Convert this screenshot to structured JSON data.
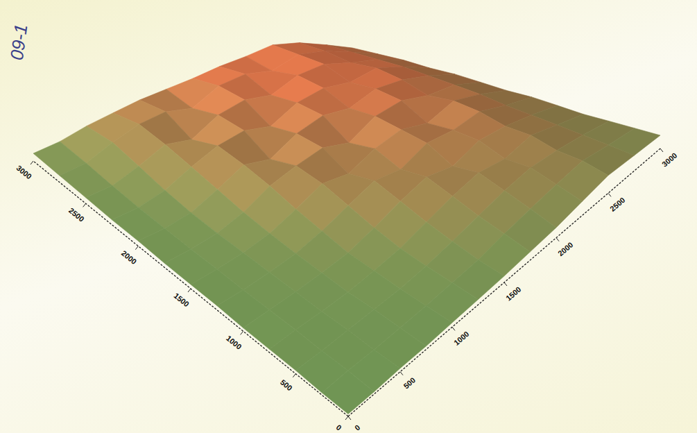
{
  "chart_data": {
    "type": "surface",
    "annotation": "09-1",
    "x": [
      0,
      250,
      500,
      750,
      1000,
      1250,
      1500,
      1750,
      2000,
      2250,
      2500,
      2750,
      3000
    ],
    "y": [
      0,
      250,
      500,
      750,
      1000,
      1250,
      1500,
      1750,
      2000,
      2250,
      2500,
      2750,
      3000
    ],
    "z": [
      [
        2,
        2,
        3,
        3,
        4,
        5,
        6,
        8,
        10,
        14,
        18,
        16,
        14
      ],
      [
        2,
        3,
        3,
        4,
        5,
        7,
        9,
        14,
        18,
        22,
        25,
        20,
        16
      ],
      [
        3,
        3,
        4,
        5,
        6,
        9,
        14,
        20,
        26,
        30,
        28,
        24,
        18
      ],
      [
        3,
        4,
        4,
        5,
        8,
        12,
        20,
        28,
        34,
        30,
        36,
        28,
        20
      ],
      [
        3,
        4,
        5,
        7,
        10,
        18,
        28,
        36,
        30,
        40,
        38,
        32,
        24
      ],
      [
        4,
        4,
        6,
        9,
        16,
        26,
        36,
        32,
        44,
        42,
        46,
        36,
        28
      ],
      [
        4,
        5,
        7,
        12,
        22,
        34,
        30,
        42,
        48,
        40,
        50,
        42,
        30
      ],
      [
        4,
        5,
        8,
        16,
        30,
        38,
        44,
        36,
        52,
        56,
        48,
        46,
        34
      ],
      [
        5,
        6,
        10,
        22,
        36,
        30,
        46,
        54,
        50,
        60,
        58,
        50,
        38
      ],
      [
        5,
        7,
        14,
        28,
        40,
        46,
        40,
        56,
        62,
        58,
        64,
        54,
        40
      ],
      [
        6,
        9,
        20,
        34,
        30,
        48,
        56,
        52,
        66,
        70,
        62,
        56,
        44
      ],
      [
        7,
        12,
        26,
        38,
        44,
        40,
        58,
        64,
        60,
        72,
        68,
        58,
        46
      ],
      [
        8,
        14,
        24,
        32,
        40,
        46,
        52,
        60,
        66,
        74,
        70,
        60,
        48
      ]
    ],
    "xlim": [
      0,
      3000
    ],
    "ylim": [
      0,
      3000
    ],
    "zlim": [
      0,
      100
    ],
    "xticks": [
      0,
      500,
      1000,
      1500,
      2000,
      2500,
      3000
    ],
    "yticks": [
      0,
      500,
      1000,
      1500,
      2000,
      2500,
      3000
    ]
  }
}
